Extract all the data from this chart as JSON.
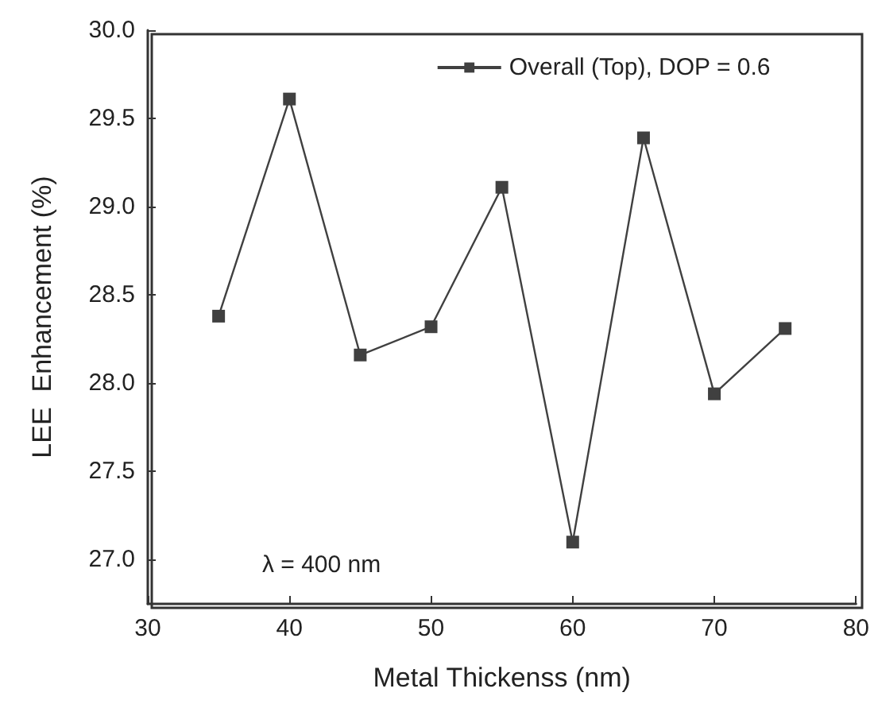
{
  "chart_data": {
    "type": "line",
    "xlabel": "Metal Thickenss (nm)",
    "ylabel": "LEE  Enhancement (%)",
    "x": [
      35,
      40,
      45,
      50,
      55,
      60,
      65,
      70,
      75
    ],
    "series": [
      {
        "name": "Overall (Top), DOP = 0.6",
        "color": "#404040",
        "values": [
          28.38,
          29.61,
          28.16,
          28.32,
          29.11,
          27.1,
          29.39,
          27.94,
          28.31
        ]
      }
    ],
    "xlim": [
      30,
      80
    ],
    "xticks": [
      30,
      40,
      50,
      60,
      70,
      80
    ],
    "ylim": [
      26.75,
      30
    ],
    "yticks": [
      {
        "value": 27,
        "label": "27.0"
      },
      27.5,
      {
        "value": 28,
        "label": "28.0"
      },
      28.5,
      {
        "value": 29,
        "label": "29.0"
      },
      29.5,
      {
        "value": 30,
        "label": "30.0"
      }
    ],
    "annotations": [
      "λ = 400 nm"
    ],
    "marker": "square",
    "line_style": "solid",
    "grid": false,
    "legend": "top right"
  }
}
